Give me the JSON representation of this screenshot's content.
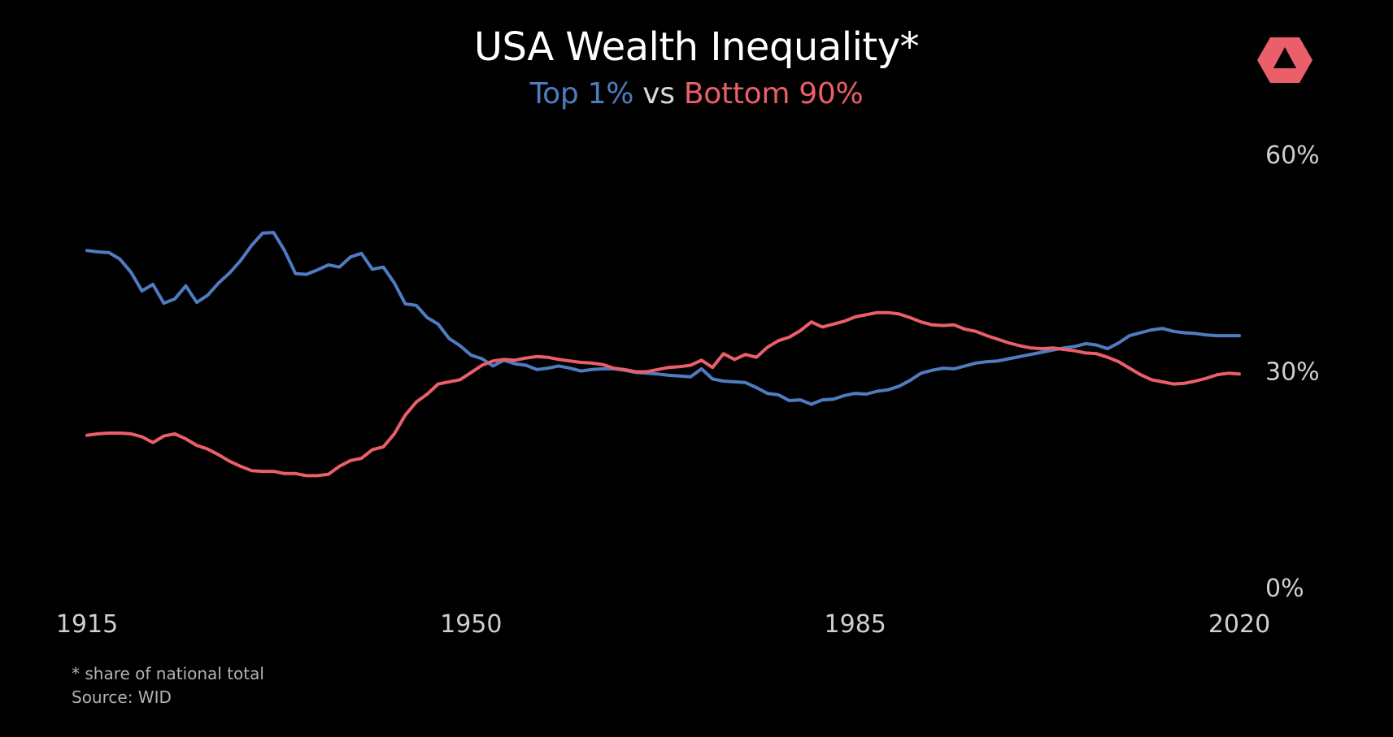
{
  "title": "USA Wealth Inequality*",
  "subtitle": {
    "top": "Top 1%",
    "vs": "vs",
    "bottom": "Bottom 90%"
  },
  "footnote": {
    "line1": "* share of national total",
    "line2": "Source: WID"
  },
  "logo_icon": "hexagon-triangle-logo-icon",
  "colors": {
    "background": "#000000",
    "top1": "#4f7cc0",
    "bottom90": "#ea5f69",
    "axis_text": "#cfcfcf",
    "logo": "#ea5f69"
  },
  "chart_data": {
    "type": "line",
    "title": "USA Wealth Inequality*",
    "subtitle": "Top 1% vs Bottom 90%",
    "xlabel": "",
    "ylabel": "",
    "xlim": [
      1915,
      2020
    ],
    "ylim": [
      0,
      60
    ],
    "x_ticks": [
      1915,
      1950,
      1985,
      2020
    ],
    "x_tick_labels": [
      "1915",
      "1950",
      "1985",
      "2020"
    ],
    "y_ticks": [
      0,
      30,
      60
    ],
    "y_tick_labels": [
      "0%",
      "30%",
      "60%"
    ],
    "y_axis_side": "right",
    "grid": false,
    "legend": "none (series named by colored subtitle)",
    "x": [
      1915,
      1916,
      1917,
      1918,
      1919,
      1920,
      1921,
      1922,
      1923,
      1924,
      1925,
      1926,
      1927,
      1928,
      1929,
      1930,
      1931,
      1932,
      1933,
      1934,
      1935,
      1936,
      1937,
      1938,
      1939,
      1940,
      1941,
      1942,
      1943,
      1944,
      1945,
      1946,
      1947,
      1948,
      1949,
      1950,
      1951,
      1952,
      1953,
      1954,
      1955,
      1956,
      1957,
      1958,
      1959,
      1960,
      1961,
      1962,
      1963,
      1964,
      1965,
      1966,
      1967,
      1968,
      1969,
      1970,
      1971,
      1972,
      1973,
      1974,
      1975,
      1976,
      1977,
      1978,
      1979,
      1980,
      1981,
      1982,
      1983,
      1984,
      1985,
      1986,
      1987,
      1988,
      1989,
      1990,
      1991,
      1992,
      1993,
      1994,
      1995,
      1996,
      1997,
      1998,
      1999,
      2000,
      2001,
      2002,
      2003,
      2004,
      2005,
      2006,
      2007,
      2008,
      2009,
      2010,
      2011,
      2012,
      2013,
      2014,
      2015,
      2016,
      2017,
      2018,
      2019,
      2020
    ],
    "series": [
      {
        "name": "Top 1%",
        "color": "#4f7cc0",
        "values": [
          46.8,
          46.6,
          46.5,
          45.6,
          43.8,
          41.2,
          42.1,
          39.5,
          40.1,
          41.9,
          39.6,
          40.6,
          42.3,
          43.7,
          45.4,
          47.5,
          49.2,
          49.3,
          46.8,
          43.6,
          43.5,
          44.1,
          44.8,
          44.5,
          45.9,
          46.4,
          44.2,
          44.5,
          42.3,
          39.4,
          39.2,
          37.5,
          36.6,
          34.6,
          33.6,
          32.3,
          31.8,
          30.8,
          31.6,
          31.1,
          30.9,
          30.3,
          30.5,
          30.8,
          30.5,
          30.1,
          30.3,
          30.4,
          30.4,
          30.2,
          29.9,
          29.8,
          29.7,
          29.5,
          29.4,
          29.3,
          30.4,
          29.0,
          28.7,
          28.6,
          28.5,
          27.8,
          27.0,
          26.8,
          26.0,
          26.1,
          25.5,
          26.1,
          26.2,
          26.7,
          27.0,
          26.9,
          27.3,
          27.5,
          28.0,
          28.8,
          29.8,
          30.2,
          30.5,
          30.4,
          30.8,
          31.2,
          31.4,
          31.5,
          31.8,
          32.1,
          32.4,
          32.7,
          33.0,
          33.3,
          33.5,
          33.9,
          33.7,
          33.2,
          34.0,
          35.0,
          35.4,
          35.8,
          36.0,
          35.6,
          35.4,
          35.3,
          35.1,
          35.0,
          35.0,
          35.0
        ]
      },
      {
        "name": "Bottom 90%",
        "color": "#ea5f69",
        "values": [
          21.2,
          21.4,
          21.5,
          21.5,
          21.4,
          21.0,
          20.2,
          21.1,
          21.4,
          20.7,
          19.8,
          19.3,
          18.5,
          17.6,
          16.9,
          16.3,
          16.2,
          16.2,
          15.9,
          15.9,
          15.6,
          15.6,
          15.8,
          16.9,
          17.7,
          18.0,
          19.2,
          19.6,
          21.4,
          24.0,
          25.8,
          26.9,
          28.3,
          28.6,
          28.9,
          29.9,
          30.9,
          31.5,
          31.7,
          31.6,
          31.9,
          32.1,
          32.0,
          31.7,
          31.5,
          31.3,
          31.2,
          31.0,
          30.5,
          30.3,
          30.0,
          30.0,
          30.3,
          30.6,
          30.7,
          30.9,
          31.6,
          30.6,
          32.5,
          31.7,
          32.4,
          32.0,
          33.4,
          34.3,
          34.8,
          35.7,
          36.9,
          36.2,
          36.6,
          37.0,
          37.6,
          37.9,
          38.2,
          38.2,
          38.0,
          37.5,
          36.9,
          36.5,
          36.4,
          36.5,
          35.9,
          35.6,
          35.0,
          34.5,
          34.0,
          33.6,
          33.3,
          33.2,
          33.3,
          33.1,
          32.9,
          32.6,
          32.5,
          32.0,
          31.4,
          30.5,
          29.6,
          28.9,
          28.6,
          28.3,
          28.4,
          28.7,
          29.1,
          29.6,
          29.8,
          29.7
        ]
      }
    ]
  }
}
